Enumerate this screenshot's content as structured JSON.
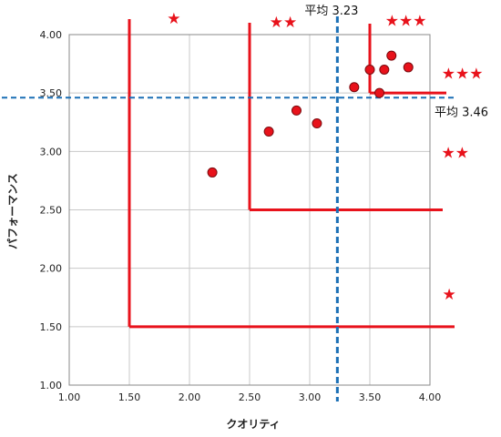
{
  "chart_data": {
    "type": "scatter",
    "xlabel": "クオリティ",
    "ylabel": "パフォーマンス",
    "xlim": [
      1.0,
      4.0
    ],
    "ylim": [
      1.0,
      4.0
    ],
    "x_ticks": [
      "1.00",
      "1.50",
      "2.00",
      "2.50",
      "3.00",
      "3.50",
      "4.00"
    ],
    "y_ticks": [
      "1.00",
      "1.50",
      "2.00",
      "2.50",
      "3.00",
      "3.50",
      "4.00"
    ],
    "grid": true,
    "points": [
      {
        "x": 2.19,
        "y": 2.82
      },
      {
        "x": 2.66,
        "y": 3.17
      },
      {
        "x": 2.89,
        "y": 3.35
      },
      {
        "x": 3.06,
        "y": 3.24
      },
      {
        "x": 3.37,
        "y": 3.55
      },
      {
        "x": 3.5,
        "y": 3.7
      },
      {
        "x": 3.58,
        "y": 3.5
      },
      {
        "x": 3.62,
        "y": 3.7
      },
      {
        "x": 3.68,
        "y": 3.82
      },
      {
        "x": 3.82,
        "y": 3.72
      }
    ],
    "mean_x": {
      "value": 3.23,
      "label": "平均 3.23"
    },
    "mean_y": {
      "value": 3.46,
      "label": "平均 3.46"
    },
    "rating_zones": [
      {
        "from": 1.5,
        "stars": "★"
      },
      {
        "from": 2.5,
        "stars": "★★"
      },
      {
        "from": 3.5,
        "stars": "★★★"
      }
    ],
    "star_labels": [
      {
        "text": "★",
        "x": 1.87,
        "y": 4.14
      },
      {
        "text": "★★",
        "x": 2.78,
        "y": 4.11
      },
      {
        "text": "★★★",
        "x": 3.8,
        "y": 4.12
      },
      {
        "text": "★★★",
        "x": 4.27,
        "y": 3.67
      },
      {
        "text": "★★",
        "x": 4.21,
        "y": 2.99
      },
      {
        "text": "★",
        "x": 4.16,
        "y": 1.78
      }
    ],
    "colors": {
      "points": "#e8121b",
      "zones": "#e8121b",
      "mean_lines": "#1a6fb5",
      "grid": "#c8c8c8",
      "axes": "#888888"
    }
  }
}
